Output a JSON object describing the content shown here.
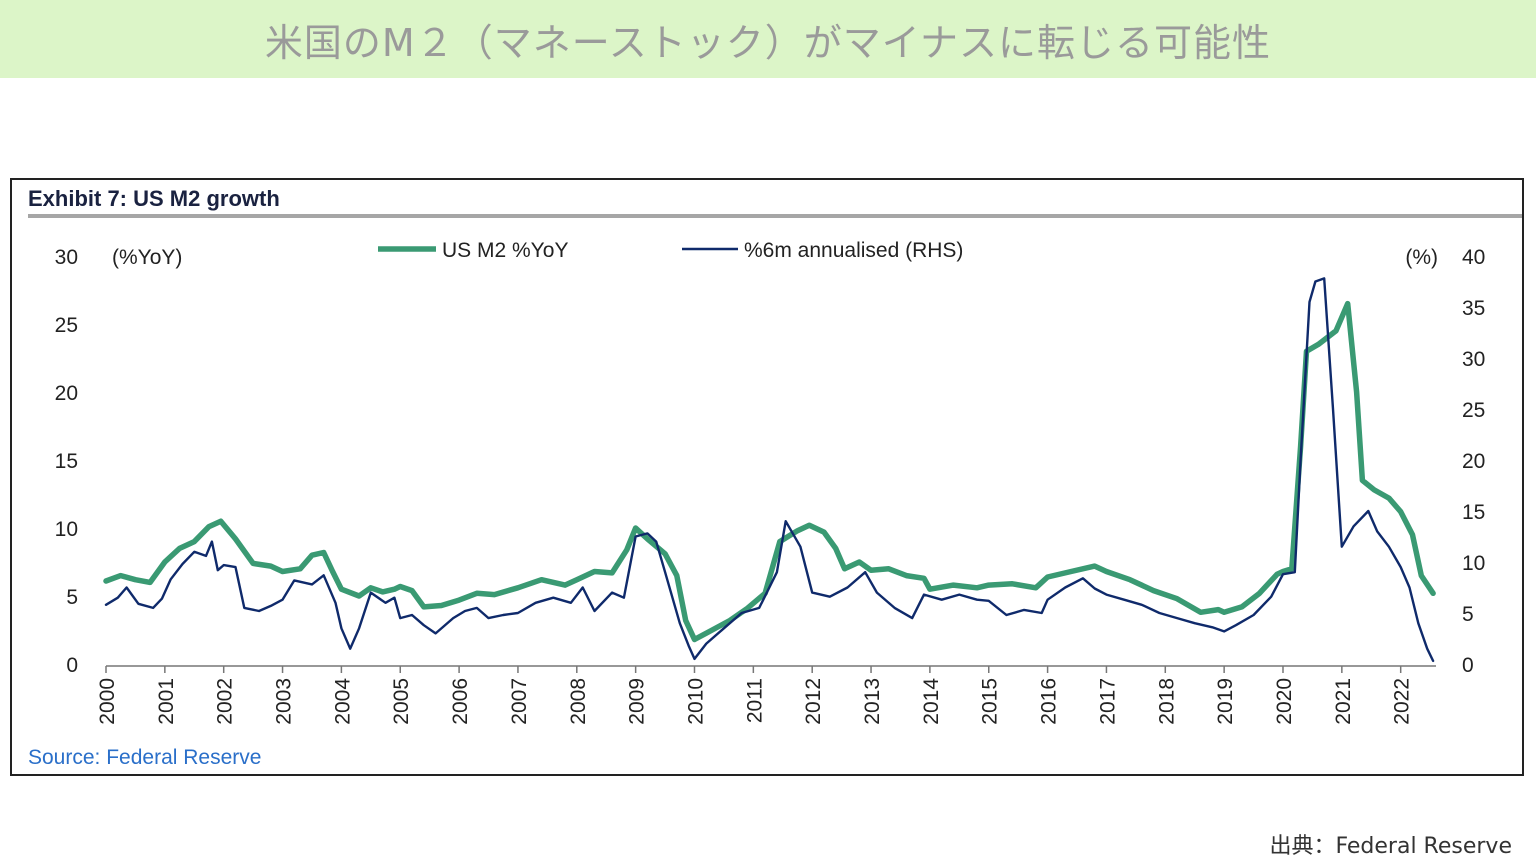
{
  "banner": {
    "title": "米国のM２（マネーストック）がマイナスに転じる可能性"
  },
  "exhibit": {
    "title": "Exhibit 7: US M2 growth",
    "source": "Source: Federal Reserve"
  },
  "credit": "出典：Federal Reserve",
  "chart_data": {
    "type": "line",
    "title": "Exhibit 7: US M2 growth",
    "left_axis": {
      "unit_label": "(%YoY)",
      "ylim": [
        0,
        30
      ],
      "ticks": [
        "0",
        "5",
        "10",
        "15",
        "20",
        "25",
        "30"
      ]
    },
    "right_axis": {
      "unit_label": "(%)",
      "ylim": [
        0,
        40
      ],
      "ticks": [
        "0",
        "5",
        "10",
        "15",
        "20",
        "25",
        "30",
        "35",
        "40"
      ]
    },
    "x_ticks": [
      "2000",
      "2001",
      "2002",
      "2003",
      "2004",
      "2005",
      "2006",
      "2007",
      "2008",
      "2009",
      "2010",
      "2011",
      "2012",
      "2013",
      "2014",
      "2015",
      "2016",
      "2017",
      "2018",
      "2019",
      "2020",
      "2021",
      "2022"
    ],
    "xlim": [
      2000,
      2022.6
    ],
    "grid": false,
    "legend_position": "top-center",
    "series": [
      {
        "name": "US M2 %YoY",
        "axis": "left",
        "color": "#3a9a73",
        "points": [
          [
            2000.0,
            6.1
          ],
          [
            2000.25,
            6.5
          ],
          [
            2000.5,
            6.2
          ],
          [
            2000.75,
            6.0
          ],
          [
            2001.0,
            7.5
          ],
          [
            2001.25,
            8.5
          ],
          [
            2001.5,
            9.0
          ],
          [
            2001.75,
            10.1
          ],
          [
            2001.95,
            10.5
          ],
          [
            2002.2,
            9.2
          ],
          [
            2002.5,
            7.4
          ],
          [
            2002.8,
            7.2
          ],
          [
            2003.0,
            6.8
          ],
          [
            2003.3,
            7.0
          ],
          [
            2003.5,
            8.0
          ],
          [
            2003.7,
            8.2
          ],
          [
            2003.85,
            6.8
          ],
          [
            2004.0,
            5.5
          ],
          [
            2004.3,
            5.0
          ],
          [
            2004.5,
            5.6
          ],
          [
            2004.7,
            5.3
          ],
          [
            2004.9,
            5.5
          ],
          [
            2005.0,
            5.7
          ],
          [
            2005.2,
            5.4
          ],
          [
            2005.4,
            4.2
          ],
          [
            2005.7,
            4.3
          ],
          [
            2006.0,
            4.7
          ],
          [
            2006.3,
            5.2
          ],
          [
            2006.6,
            5.1
          ],
          [
            2007.0,
            5.6
          ],
          [
            2007.4,
            6.2
          ],
          [
            2007.8,
            5.8
          ],
          [
            2008.0,
            6.2
          ],
          [
            2008.3,
            6.8
          ],
          [
            2008.6,
            6.7
          ],
          [
            2008.85,
            8.4
          ],
          [
            2009.0,
            10.0
          ],
          [
            2009.2,
            9.2
          ],
          [
            2009.5,
            8.1
          ],
          [
            2009.7,
            6.5
          ],
          [
            2009.85,
            3.2
          ],
          [
            2010.0,
            1.8
          ],
          [
            2010.3,
            2.5
          ],
          [
            2010.6,
            3.2
          ],
          [
            2010.9,
            4.1
          ],
          [
            2011.2,
            5.2
          ],
          [
            2011.45,
            9.0
          ],
          [
            2011.75,
            9.8
          ],
          [
            2011.95,
            10.2
          ],
          [
            2012.2,
            9.7
          ],
          [
            2012.4,
            8.5
          ],
          [
            2012.55,
            7.0
          ],
          [
            2012.8,
            7.5
          ],
          [
            2013.0,
            6.9
          ],
          [
            2013.3,
            7.0
          ],
          [
            2013.6,
            6.5
          ],
          [
            2013.9,
            6.3
          ],
          [
            2014.0,
            5.5
          ],
          [
            2014.4,
            5.8
          ],
          [
            2014.8,
            5.6
          ],
          [
            2015.0,
            5.8
          ],
          [
            2015.4,
            5.9
          ],
          [
            2015.8,
            5.6
          ],
          [
            2016.0,
            6.4
          ],
          [
            2016.4,
            6.8
          ],
          [
            2016.8,
            7.2
          ],
          [
            2017.0,
            6.8
          ],
          [
            2017.4,
            6.2
          ],
          [
            2017.8,
            5.4
          ],
          [
            2018.2,
            4.8
          ],
          [
            2018.6,
            3.8
          ],
          [
            2018.9,
            4.0
          ],
          [
            2019.0,
            3.8
          ],
          [
            2019.3,
            4.2
          ],
          [
            2019.6,
            5.2
          ],
          [
            2019.9,
            6.6
          ],
          [
            2020.0,
            6.8
          ],
          [
            2020.15,
            7.0
          ],
          [
            2020.3,
            16.0
          ],
          [
            2020.4,
            23.0
          ],
          [
            2020.6,
            23.5
          ],
          [
            2020.9,
            24.5
          ],
          [
            2021.1,
            26.5
          ],
          [
            2021.25,
            20.0
          ],
          [
            2021.35,
            13.5
          ],
          [
            2021.55,
            12.8
          ],
          [
            2021.8,
            12.2
          ],
          [
            2022.0,
            11.2
          ],
          [
            2022.2,
            9.5
          ],
          [
            2022.35,
            6.5
          ],
          [
            2022.55,
            5.2
          ]
        ]
      },
      {
        "name": "%6m annualised (RHS)",
        "axis": "right",
        "color": "#0f2a6b",
        "points": [
          [
            2000.0,
            5.8
          ],
          [
            2000.2,
            6.5
          ],
          [
            2000.35,
            7.5
          ],
          [
            2000.55,
            5.9
          ],
          [
            2000.8,
            5.5
          ],
          [
            2000.95,
            6.4
          ],
          [
            2001.1,
            8.3
          ],
          [
            2001.3,
            9.8
          ],
          [
            2001.5,
            11.0
          ],
          [
            2001.7,
            10.6
          ],
          [
            2001.8,
            12.0
          ],
          [
            2001.9,
            9.2
          ],
          [
            2002.0,
            9.7
          ],
          [
            2002.2,
            9.5
          ],
          [
            2002.35,
            5.5
          ],
          [
            2002.6,
            5.2
          ],
          [
            2002.8,
            5.7
          ],
          [
            2003.0,
            6.3
          ],
          [
            2003.2,
            8.2
          ],
          [
            2003.5,
            7.8
          ],
          [
            2003.7,
            8.7
          ],
          [
            2003.9,
            6.0
          ],
          [
            2004.0,
            3.5
          ],
          [
            2004.15,
            1.5
          ],
          [
            2004.3,
            3.5
          ],
          [
            2004.5,
            7.0
          ],
          [
            2004.75,
            6.0
          ],
          [
            2004.9,
            6.5
          ],
          [
            2005.0,
            4.5
          ],
          [
            2005.2,
            4.8
          ],
          [
            2005.4,
            3.8
          ],
          [
            2005.6,
            3.0
          ],
          [
            2005.9,
            4.5
          ],
          [
            2006.1,
            5.2
          ],
          [
            2006.3,
            5.5
          ],
          [
            2006.5,
            4.5
          ],
          [
            2006.75,
            4.8
          ],
          [
            2007.0,
            5.0
          ],
          [
            2007.3,
            6.0
          ],
          [
            2007.6,
            6.5
          ],
          [
            2007.9,
            6.0
          ],
          [
            2008.1,
            7.5
          ],
          [
            2008.3,
            5.2
          ],
          [
            2008.6,
            7.0
          ],
          [
            2008.8,
            6.5
          ],
          [
            2009.0,
            12.5
          ],
          [
            2009.2,
            12.8
          ],
          [
            2009.35,
            12.0
          ],
          [
            2009.5,
            9.0
          ],
          [
            2009.75,
            4.0
          ],
          [
            2009.9,
            1.8
          ],
          [
            2010.0,
            0.5
          ],
          [
            2010.2,
            2.0
          ],
          [
            2010.5,
            3.5
          ],
          [
            2010.8,
            5.0
          ],
          [
            2011.1,
            5.5
          ],
          [
            2011.4,
            9.0
          ],
          [
            2011.55,
            14.0
          ],
          [
            2011.8,
            11.5
          ],
          [
            2012.0,
            7.0
          ],
          [
            2012.3,
            6.6
          ],
          [
            2012.6,
            7.5
          ],
          [
            2012.9,
            9.0
          ],
          [
            2013.1,
            7.0
          ],
          [
            2013.4,
            5.5
          ],
          [
            2013.7,
            4.5
          ],
          [
            2013.9,
            6.8
          ],
          [
            2014.2,
            6.3
          ],
          [
            2014.5,
            6.8
          ],
          [
            2014.8,
            6.3
          ],
          [
            2015.0,
            6.2
          ],
          [
            2015.3,
            4.8
          ],
          [
            2015.6,
            5.3
          ],
          [
            2015.9,
            5.0
          ],
          [
            2016.0,
            6.3
          ],
          [
            2016.3,
            7.5
          ],
          [
            2016.6,
            8.4
          ],
          [
            2016.8,
            7.4
          ],
          [
            2017.0,
            6.8
          ],
          [
            2017.3,
            6.3
          ],
          [
            2017.6,
            5.8
          ],
          [
            2017.9,
            5.0
          ],
          [
            2018.2,
            4.5
          ],
          [
            2018.5,
            4.0
          ],
          [
            2018.8,
            3.6
          ],
          [
            2019.0,
            3.2
          ],
          [
            2019.2,
            3.8
          ],
          [
            2019.5,
            4.8
          ],
          [
            2019.8,
            6.6
          ],
          [
            2020.0,
            8.8
          ],
          [
            2020.2,
            9.0
          ],
          [
            2020.3,
            20.0
          ],
          [
            2020.45,
            35.5
          ],
          [
            2020.55,
            37.5
          ],
          [
            2020.7,
            37.8
          ],
          [
            2020.85,
            25.0
          ],
          [
            2021.0,
            11.5
          ],
          [
            2021.2,
            13.5
          ],
          [
            2021.45,
            15.0
          ],
          [
            2021.6,
            13.0
          ],
          [
            2021.8,
            11.5
          ],
          [
            2022.0,
            9.5
          ],
          [
            2022.15,
            7.5
          ],
          [
            2022.3,
            4.0
          ],
          [
            2022.45,
            1.5
          ],
          [
            2022.55,
            0.3
          ]
        ]
      }
    ]
  }
}
